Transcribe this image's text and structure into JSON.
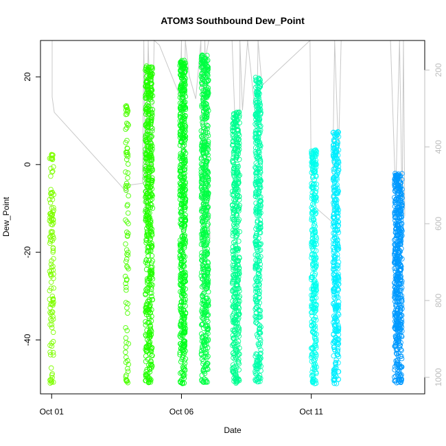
{
  "chart_data": {
    "type": "scatter",
    "title": "ATOM3 Southbound Dew_Point",
    "xlabel": "Date",
    "ylabel": "Dew_Point",
    "x_ticks": [
      {
        "day": 1,
        "label": "Oct 01"
      },
      {
        "day": 6,
        "label": "Oct 06"
      },
      {
        "day": 11,
        "label": "Oct 11"
      }
    ],
    "y_ticks": [
      20,
      0,
      -20,
      -40
    ],
    "y_right_ticks": [
      200,
      400,
      600,
      800,
      1000
    ],
    "xlim": [
      0.57,
      15.37
    ],
    "ylim": [
      -52.3,
      28.3
    ],
    "y_right_lim": [
      123,
      1043
    ],
    "y_right_reversed": true,
    "grid": false,
    "overlay_color": "#c8c8c8",
    "right_axis_color": "#bdbdbd",
    "strips": [
      {
        "day": 1.0,
        "width": 0.16,
        "low": -50,
        "high": 2.5,
        "color": "#7fff00",
        "density": 120
      },
      {
        "day": 3.9,
        "width": 0.12,
        "low": -50,
        "high": 13.5,
        "color": "#4cff00",
        "density": 90
      },
      {
        "day": 4.75,
        "width": 0.28,
        "low": -50,
        "high": 22.5,
        "color": "#22ff00",
        "density": 520
      },
      {
        "day": 6.05,
        "width": 0.22,
        "low": -50,
        "high": 24.0,
        "color": "#00ff1c",
        "density": 500
      },
      {
        "day": 6.9,
        "width": 0.28,
        "low": -50,
        "high": 25.0,
        "color": "#00ff44",
        "density": 560
      },
      {
        "day": 8.1,
        "width": 0.28,
        "low": -50,
        "high": 12.0,
        "color": "#00ff90",
        "density": 440
      },
      {
        "day": 8.95,
        "width": 0.22,
        "low": -50,
        "high": 20.0,
        "color": "#00ffaa",
        "density": 400
      },
      {
        "day": 11.1,
        "width": 0.2,
        "low": -50,
        "high": 3.5,
        "color": "#00ffee",
        "density": 300
      },
      {
        "day": 11.95,
        "width": 0.22,
        "low": -50,
        "high": 7.5,
        "color": "#00eeff",
        "density": 360
      },
      {
        "day": 14.35,
        "width": 0.3,
        "low": -50,
        "high": -2.0,
        "color": "#0099ff",
        "density": 520
      }
    ],
    "pressure_track": [
      [
        1.02,
        123
      ],
      [
        1.02,
        270
      ],
      [
        1.1,
        310
      ],
      [
        3.92,
        520
      ],
      [
        3.92,
        500
      ],
      [
        4.5,
        495
      ],
      [
        4.55,
        123
      ],
      [
        4.62,
        600
      ],
      [
        4.72,
        123
      ],
      [
        4.85,
        480
      ],
      [
        4.95,
        123
      ],
      [
        5.15,
        135
      ],
      [
        5.95,
        270
      ],
      [
        6.0,
        123
      ],
      [
        6.02,
        900
      ],
      [
        6.15,
        123
      ],
      [
        6.3,
        215
      ],
      [
        6.55,
        275
      ],
      [
        6.75,
        123
      ],
      [
        6.82,
        815
      ],
      [
        6.9,
        123
      ],
      [
        7.1,
        640
      ],
      [
        6.8,
        215
      ],
      [
        7.05,
        123
      ],
      [
        7.95,
        123
      ],
      [
        8.05,
        310
      ],
      [
        8.25,
        320
      ],
      [
        8.25,
        123
      ],
      [
        8.35,
        305
      ],
      [
        8.55,
        123
      ],
      [
        8.9,
        350
      ],
      [
        8.95,
        123
      ],
      [
        9.1,
        240
      ],
      [
        10.95,
        123
      ],
      [
        11.0,
        510
      ],
      [
        11.2,
        560
      ],
      [
        11.8,
        595
      ],
      [
        11.9,
        123
      ],
      [
        12.05,
        420
      ],
      [
        12.15,
        123
      ],
      [
        14.05,
        123
      ],
      [
        14.25,
        530
      ],
      [
        14.4,
        123
      ],
      [
        14.5,
        560
      ],
      [
        14.55,
        123
      ],
      [
        14.6,
        580
      ]
    ]
  }
}
